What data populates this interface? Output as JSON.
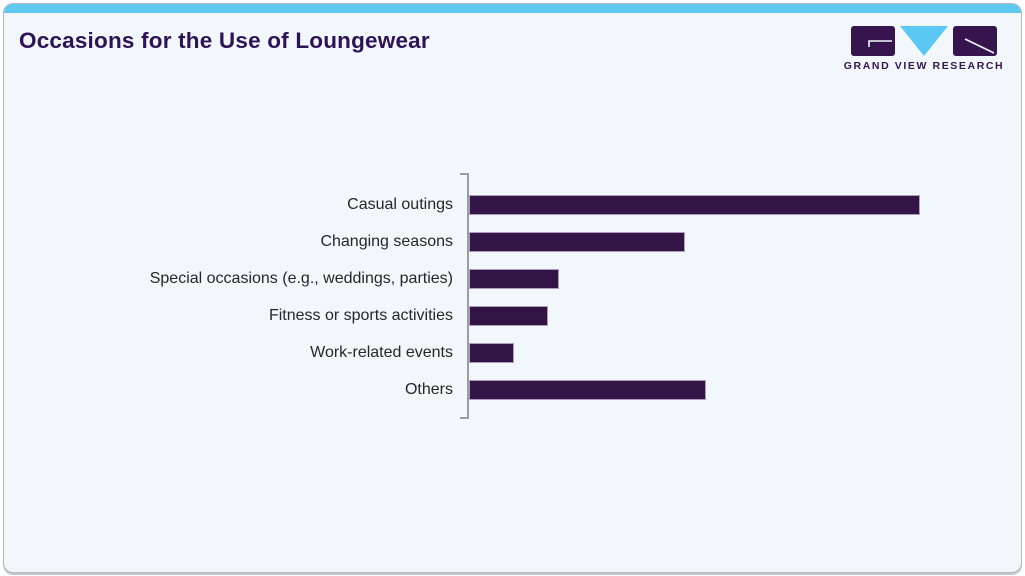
{
  "header": {
    "title": "Occasions for the Use of Loungewear",
    "logo_text": "GRAND VIEW RESEARCH"
  },
  "colors": {
    "accent_blue": "#5fc8f0",
    "card_bg": "#f2f7fb",
    "bar_purple": "#331447",
    "title_purple": "#2d1357",
    "logo_purple": "#36154f",
    "logo_blue": "#5bc8f3",
    "axis_gray": "#9a9da1"
  },
  "chart_data": {
    "type": "bar",
    "orientation": "horizontal",
    "title": "Occasions for the Use of Loungewear",
    "categories": [
      "Casual outings",
      "Changing seasons",
      "Special occasions (e.g., weddings, parties)",
      "Fitness or sports activities",
      "Work-related events",
      "Others"
    ],
    "values_pct_of_max": [
      100,
      48,
      20,
      17.5,
      10,
      52.5
    ],
    "value_labels_shown": false,
    "xlabel": "",
    "ylabel": "",
    "xaxis_ticks_shown": false,
    "grid": false,
    "legend": false,
    "bar_color": "#331447",
    "layout": {
      "bars_top_to_bottom": true,
      "labels_position": "left"
    }
  }
}
